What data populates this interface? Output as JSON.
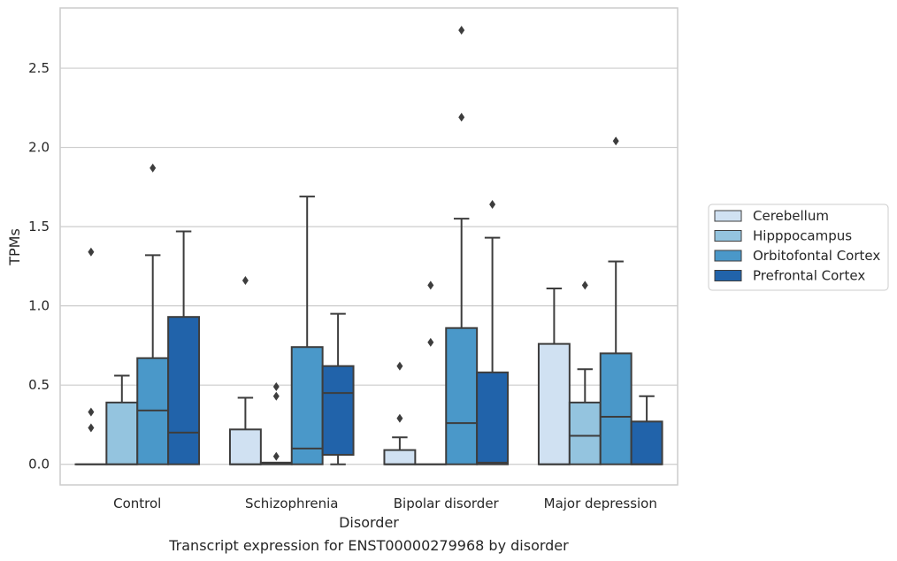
{
  "chart_data": {
    "type": "boxplot",
    "caption": "Transcript expression for ENST00000279968 by disorder",
    "xlabel": "Disorder",
    "ylabel": "TPMs",
    "ylim": [
      -0.13,
      2.88
    ],
    "yticks": [
      "0.0",
      "0.5",
      "1.0",
      "1.5",
      "2.0",
      "2.5"
    ],
    "ytick_values": [
      0,
      0.5,
      1,
      1.5,
      2,
      2.5
    ],
    "grid": "horizontal",
    "legend_position": "right",
    "categories": [
      "Control",
      "Schizophrenia",
      "Bipolar disorder",
      "Major depression"
    ],
    "series": [
      {
        "name": "Cerebellum",
        "color": "#d0e1f2",
        "boxes": [
          {
            "whislo": 0,
            "q1": 0,
            "med": 0,
            "q3": 0,
            "whishi": 0,
            "fliers": [
              0.23,
              0.33,
              1.34
            ]
          },
          {
            "whislo": 0,
            "q1": 0,
            "med": 0,
            "q3": 0.22,
            "whishi": 0.42,
            "fliers": [
              1.16
            ]
          },
          {
            "whislo": 0,
            "q1": 0,
            "med": 0,
            "q3": 0.09,
            "whishi": 0.17,
            "fliers": [
              0.29,
              0.62
            ]
          },
          {
            "whislo": 0,
            "q1": 0,
            "med": 0,
            "q3": 0.76,
            "whishi": 1.11,
            "fliers": []
          }
        ]
      },
      {
        "name": "Hipppocampus",
        "color": "#94c4df",
        "boxes": [
          {
            "whislo": 0,
            "q1": 0,
            "med": 0,
            "q3": 0.39,
            "whishi": 0.56,
            "fliers": []
          },
          {
            "whislo": 0,
            "q1": 0,
            "med": 0.01,
            "q3": 0.01,
            "whishi": 0.01,
            "fliers": [
              0.05,
              0.43,
              0.49
            ]
          },
          {
            "whislo": 0,
            "q1": 0,
            "med": 0,
            "q3": 0,
            "whishi": 0,
            "fliers": [
              0.77,
              1.13
            ]
          },
          {
            "whislo": 0,
            "q1": 0,
            "med": 0.18,
            "q3": 0.39,
            "whishi": 0.6,
            "fliers": [
              1.13
            ]
          }
        ]
      },
      {
        "name": "Orbitofontal Cortex",
        "color": "#4a98c9",
        "boxes": [
          {
            "whislo": 0,
            "q1": 0,
            "med": 0.34,
            "q3": 0.67,
            "whishi": 1.32,
            "fliers": [
              1.87
            ]
          },
          {
            "whislo": 0,
            "q1": 0,
            "med": 0.1,
            "q3": 0.74,
            "whishi": 1.69,
            "fliers": []
          },
          {
            "whislo": 0,
            "q1": 0,
            "med": 0.26,
            "q3": 0.86,
            "whishi": 1.55,
            "fliers": [
              2.19,
              2.74
            ]
          },
          {
            "whislo": 0,
            "q1": 0,
            "med": 0.3,
            "q3": 0.7,
            "whishi": 1.28,
            "fliers": [
              2.04
            ]
          }
        ]
      },
      {
        "name": "Prefrontal Cortex",
        "color": "#2163aa",
        "boxes": [
          {
            "whislo": 0,
            "q1": 0,
            "med": 0.2,
            "q3": 0.93,
            "whishi": 1.47,
            "fliers": []
          },
          {
            "whislo": 0,
            "q1": 0.06,
            "med": 0.45,
            "q3": 0.62,
            "whishi": 0.95,
            "fliers": []
          },
          {
            "whislo": 0,
            "q1": 0,
            "med": 0.01,
            "q3": 0.58,
            "whishi": 1.43,
            "fliers": [
              1.64
            ]
          },
          {
            "whislo": 0,
            "q1": 0,
            "med": 0,
            "q3": 0.27,
            "whishi": 0.43,
            "fliers": []
          }
        ]
      }
    ],
    "styles": {
      "edge_color": "#3d3d3d",
      "grid_color": "#cccccc",
      "frame_color": "#cccccc",
      "text_color": "#262626"
    }
  }
}
